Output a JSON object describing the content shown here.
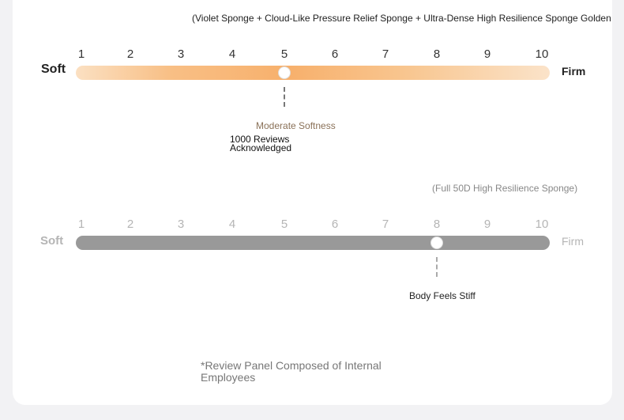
{
  "scale": {
    "numbers": [
      "1",
      "2",
      "3",
      "4",
      "5",
      "6",
      "7",
      "8",
      "9",
      "10"
    ],
    "soft_label": "Soft",
    "firm_label": "Firm"
  },
  "mattress_1": {
    "foam_description": "(Violet Sponge + Cloud-Like Pressure Relief Sponge + Ultra-Dense High Resilience Sponge Golden Rati",
    "firmness_value": 5,
    "firmness_label": "Moderate Softness",
    "reviews_line1": "1000 Reviews",
    "reviews_line2": "Acknowledged",
    "gradient_colors": [
      "#fbe0c2",
      "#f7b06c",
      "#fbe3c9"
    ]
  },
  "mattress_2": {
    "foam_description": "(Full 50D High Resilience Sponge)",
    "firmness_value": 8,
    "firmness_label": "Body Feels Stiff",
    "bar_color": "#999999"
  },
  "footnote": "*Review Panel Composed of Internal Employees"
}
